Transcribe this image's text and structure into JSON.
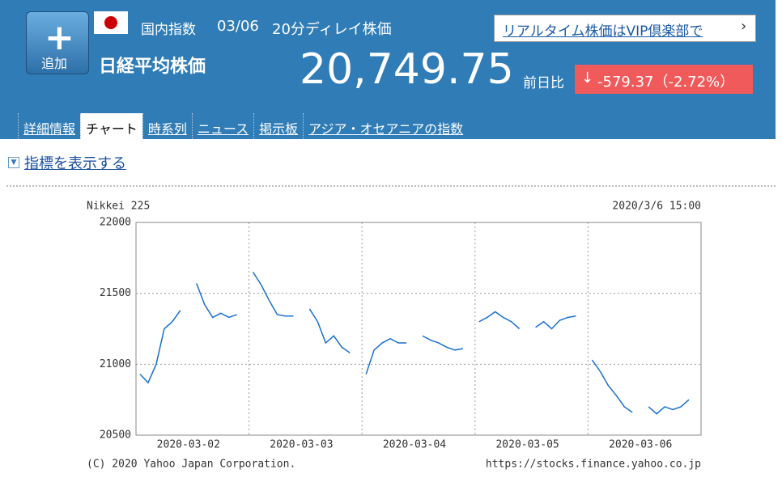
{
  "header": {
    "add_button": "追加",
    "market": "国内指数",
    "date": "03/06",
    "delay": "20分ディレイ株価",
    "vip_link": "リアルタイム株価はVIP倶楽部で",
    "name": "日経平均株価",
    "price": "20,749.75",
    "change_label": "前日比",
    "change": "-579.37（-2.72%）"
  },
  "tabs": [
    "詳細情報",
    "チャート",
    "時系列",
    "ニュース",
    "掲示板",
    "アジア・オセアニアの指数"
  ],
  "indicator_link": "指標を表示する",
  "chart_data": {
    "type": "line",
    "title": "Nikkei 225",
    "subtitle": "2020/3/6 15:00",
    "annotations": [
      "(C) 2020 Yahoo Japan Corporation.",
      "https://stocks.finance.yahoo.co.jp"
    ],
    "categories": [
      null,
      null,
      null,
      null,
      null,
      null,
      "2020-03-02",
      null,
      null,
      null,
      null,
      null,
      null,
      null,
      null,
      null,
      null,
      null,
      null,
      null,
      "2020-03-03",
      null,
      null,
      null,
      null,
      null,
      null,
      null,
      null,
      null,
      null,
      null,
      null,
      null,
      "2020-03-04",
      null,
      null,
      null,
      null,
      null,
      null,
      null,
      null,
      null,
      null,
      null,
      null,
      null,
      "2020-03-05",
      null,
      null,
      null,
      null,
      null,
      null,
      null,
      null,
      null,
      null,
      null,
      null,
      null,
      "2020-03-06",
      null,
      null,
      null,
      null,
      null,
      null,
      null
    ],
    "values": [
      20930,
      20870,
      21000,
      21250,
      21300,
      21380,
      null,
      21570,
      21420,
      21330,
      21360,
      21330,
      21350,
      null,
      21650,
      21560,
      21450,
      21350,
      21340,
      21340,
      null,
      21390,
      21300,
      21150,
      21200,
      21120,
      21080,
      null,
      20930,
      21100,
      21150,
      21180,
      21150,
      21150,
      null,
      21200,
      21170,
      21150,
      21120,
      21100,
      21110,
      null,
      21300,
      21330,
      21370,
      21330,
      21300,
      21250,
      null,
      21260,
      21300,
      21250,
      21310,
      21330,
      21340,
      null,
      21030,
      20950,
      20850,
      20780,
      20700,
      20660,
      null,
      20700,
      20650,
      20700,
      20680,
      20700,
      20750,
      null
    ],
    "color": "#1a6fd0",
    "ylim": [
      20500,
      22000
    ],
    "yticks": [
      20500,
      21000,
      21500,
      22000
    ],
    "grid": true
  }
}
